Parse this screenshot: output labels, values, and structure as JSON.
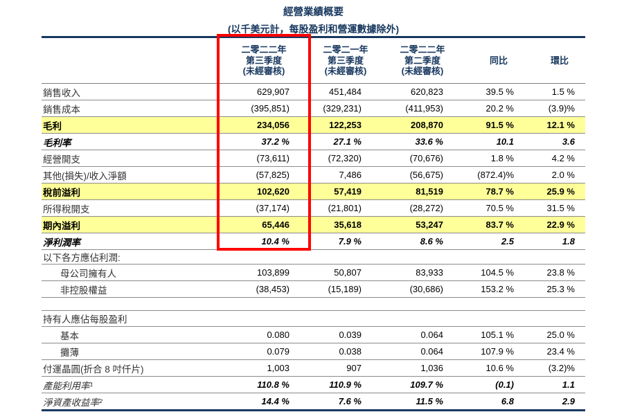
{
  "title": "經營業績概要",
  "subtitle": "(以千美元計，每股盈利和營運數據除外)",
  "colors": {
    "heading_navy": "#17375E",
    "row_highlight_yellow": "#FFFF99",
    "annotation_red_box": "#FF0000",
    "gridline_gray": "#8a8a8a"
  },
  "columns": [
    {
      "id": "q3-2022",
      "lines": [
        "二零二二年",
        "第三季度",
        "(未經審核)"
      ],
      "boxed": true
    },
    {
      "id": "q3-2021",
      "lines": [
        "二零二一年",
        "第三季度",
        "(未經審核)"
      ],
      "boxed": false
    },
    {
      "id": "q2-2022",
      "lines": [
        "二零二二年",
        "第二季度",
        "(未經審核)"
      ],
      "boxed": false
    },
    {
      "id": "yoy",
      "lines": [
        "同比"
      ],
      "boxed": false
    },
    {
      "id": "qoq",
      "lines": [
        "環比"
      ],
      "boxed": false
    }
  ],
  "rows": [
    {
      "label": "銷售收入",
      "values": [
        "629,907",
        "451,484",
        "620,823",
        "39.5 %",
        "1.5 %"
      ],
      "style": "normal",
      "indent": false
    },
    {
      "label": "銷售成本",
      "values": [
        "(395,851)",
        "(329,231)",
        "(411,953)",
        "20.2 %",
        "(3.9)%"
      ],
      "style": "normal",
      "indent": false
    },
    {
      "label": "毛利",
      "values": [
        "234,056",
        "122,253",
        "208,870",
        "91.5 %",
        "12.1 %"
      ],
      "style": "highlight",
      "indent": false
    },
    {
      "label": "毛利率",
      "values": [
        "37.2 %",
        "27.1 %",
        "33.6 %",
        "10.1",
        "3.6"
      ],
      "style": "bold-italic",
      "indent": false
    },
    {
      "label": "經營開支",
      "values": [
        "(73,611)",
        "(72,320)",
        "(70,676)",
        "1.8 %",
        "4.2 %"
      ],
      "style": "normal",
      "indent": false
    },
    {
      "label": "其他(損失)/收入淨額",
      "values": [
        "(57,825)",
        "7,486",
        "(56,675)",
        "(872.4)%",
        "2.0 %"
      ],
      "style": "normal",
      "indent": false
    },
    {
      "label": "稅前溢利",
      "values": [
        "102,620",
        "57,419",
        "81,519",
        "78.7 %",
        "25.9 %"
      ],
      "style": "highlight",
      "indent": false
    },
    {
      "label": "所得稅開支",
      "values": [
        "(37,174)",
        "(21,801)",
        "(28,272)",
        "70.5 %",
        "31.5 %"
      ],
      "style": "normal",
      "indent": false
    },
    {
      "label": "期內溢利",
      "values": [
        "65,446",
        "35,618",
        "53,247",
        "83.7 %",
        "22.9 %"
      ],
      "style": "highlight",
      "indent": false
    },
    {
      "label": "淨利潤率",
      "values": [
        "10.4 %",
        "7.9 %",
        "8.6 %",
        "2.5",
        "1.8"
      ],
      "style": "bold-italic",
      "indent": false
    },
    {
      "label": "以下各方應佔利潤:",
      "values": [],
      "style": "section-sm",
      "indent": false
    },
    {
      "label": "母公司擁有人",
      "values": [
        "103,899",
        "50,807",
        "83,933",
        "104.5 %",
        "23.8 %"
      ],
      "style": "normal",
      "indent": true
    },
    {
      "label": "非控股權益",
      "values": [
        "(38,453)",
        "(15,189)",
        "(30,686)",
        "153.2 %",
        "25.3 %"
      ],
      "style": "normal",
      "indent": true
    },
    {
      "label": "",
      "values": [],
      "style": "spacer",
      "indent": false
    },
    {
      "label": "持有人應佔每股盈利",
      "values": [],
      "style": "section",
      "indent": false
    },
    {
      "label": "基本",
      "values": [
        "0.080",
        "0.039",
        "0.064",
        "105.1 %",
        "25.0 %"
      ],
      "style": "normal",
      "indent": true
    },
    {
      "label": "攤薄",
      "values": [
        "0.079",
        "0.038",
        "0.064",
        "107.9 %",
        "23.4 %"
      ],
      "style": "normal",
      "indent": true
    },
    {
      "label": "付運晶圓(折合 8 吋仟片)",
      "values": [
        "1,003",
        "907",
        "1,036",
        "10.6 %",
        "(3.2)%"
      ],
      "style": "normal",
      "indent": false
    },
    {
      "label": "產能利用率¹",
      "values": [
        "110.8 %",
        "110.9 %",
        "109.7 %",
        "(0.1)",
        "1.1"
      ],
      "style": "italic",
      "indent": false
    },
    {
      "label": "淨資產收益率²",
      "values": [
        "14.4 %",
        "7.6 %",
        "11.5 %",
        "6.8",
        "2.9"
      ],
      "style": "italic",
      "indent": false
    }
  ]
}
